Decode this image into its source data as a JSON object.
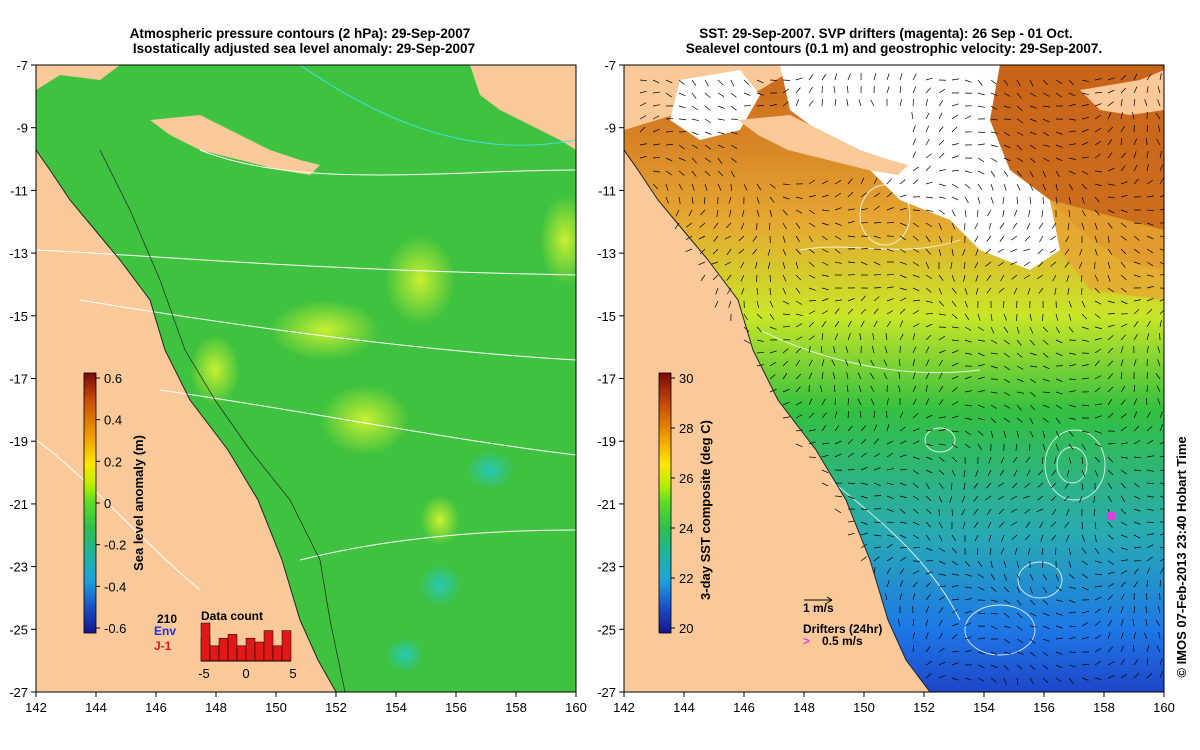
{
  "left_panel": {
    "title_line1": "Atmospheric pressure contours (2 hPa): 29-Sep-2007",
    "title_line2": "Isostatically adjusted sea level anomaly: 29-Sep-2007",
    "x_ticks": [
      "142",
      "144",
      "146",
      "148",
      "150",
      "152",
      "154",
      "156",
      "158",
      "160"
    ],
    "y_ticks": [
      "-7",
      "-9",
      "-11",
      "-13",
      "-15",
      "-17",
      "-19",
      "-21",
      "-23",
      "-25",
      "-27"
    ],
    "colorbar": {
      "label": "Sea level anomaly (m)",
      "ticks": [
        "0.6",
        "0.4",
        "0.2",
        "0",
        "-0.2",
        "-0.4",
        "-0.6"
      ]
    },
    "data_count": {
      "title": "Data count",
      "max_label": "210",
      "env_label": "Env",
      "j1_label": "J-1",
      "x_labels": [
        "-5",
        "0",
        "5"
      ],
      "env_values": [
        6
      ],
      "j1_values": [
        10,
        4,
        6,
        7,
        4,
        6,
        5,
        8,
        4,
        8
      ]
    }
  },
  "right_panel": {
    "title_line1": "SST: 29-Sep-2007. SVP drifters (magenta): 26 Sep - 01 Oct.",
    "title_line2": "Sealevel contours (0.1 m) and geostrophic velocity: 29-Sep-2007.",
    "x_ticks": [
      "142",
      "144",
      "146",
      "148",
      "150",
      "152",
      "154",
      "156",
      "158",
      "160"
    ],
    "y_ticks": [
      "-7",
      "-9",
      "-11",
      "-13",
      "-15",
      "-17",
      "-19",
      "-21",
      "-23",
      "-25",
      "-27"
    ],
    "colorbar": {
      "label": "3-day SST composite (deg C)",
      "ticks": [
        "30",
        "28",
        "26",
        "24",
        "22",
        "20"
      ]
    },
    "scale_label": "1 m/s",
    "drifters_label": "Drifters (24hr)",
    "drifter_speed_label": "0.5 m/s"
  },
  "credit": "© IMOS 07-Feb-2013 23:40 Hobart Time",
  "colors": {
    "land": "#f9c99a",
    "ocean_base": "#3fc23f",
    "sst_warm": "#c8641a",
    "sst_cold": "#1e78e6",
    "drifter": "#e03ce0",
    "colorbar_sla": [
      "#7a0a0a",
      "#c84a0a",
      "#f0a000",
      "#ffe600",
      "#b8f000",
      "#5adc28",
      "#2cbe50",
      "#20b4a0",
      "#1ea0dc",
      "#1a50c8",
      "#14148c"
    ],
    "colorbar_sst": [
      "#7a0a0a",
      "#c84a0a",
      "#f0a000",
      "#ffe600",
      "#b8f000",
      "#5adc28",
      "#2cbe50",
      "#20b4a0",
      "#1ea0dc",
      "#1a50c8",
      "#14148c"
    ]
  }
}
